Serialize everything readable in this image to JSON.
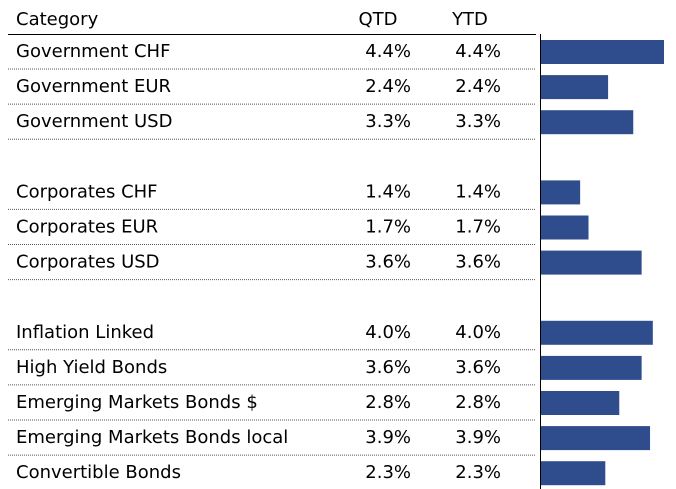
{
  "chart_data": {
    "type": "bar",
    "orientation": "horizontal",
    "header": [
      "Category",
      "QTD",
      "YTD"
    ],
    "color": "#2f4d8c",
    "groups": [
      {
        "categories": [
          "Government CHF",
          "Government EUR",
          "Government USD"
        ],
        "qtd": [
          4.4,
          2.4,
          3.3
        ],
        "qtd_labels": [
          "4.4%",
          "2.4%",
          "3.3%"
        ],
        "ytd": [
          4.4,
          2.4,
          3.3
        ],
        "ytd_labels": [
          "4.4%",
          "2.4%",
          "3.3%"
        ]
      },
      {
        "categories": [
          "Corporates CHF",
          "Corporates EUR",
          "Corporates USD"
        ],
        "qtd": [
          1.4,
          1.7,
          3.6
        ],
        "qtd_labels": [
          "1.4%",
          "1.7%",
          "3.6%"
        ],
        "ytd": [
          1.4,
          1.7,
          3.6
        ],
        "ytd_labels": [
          "1.4%",
          "1.7%",
          "3.6%"
        ]
      },
      {
        "categories": [
          "Inflation Linked",
          "High Yield Bonds",
          "Emerging Markets Bonds $",
          "Emerging Markets Bonds local",
          "Convertible Bonds"
        ],
        "qtd": [
          4.0,
          3.6,
          2.8,
          3.9,
          2.3
        ],
        "qtd_labels": [
          "4.0%",
          "3.6%",
          "2.8%",
          "3.9%",
          "2.3%"
        ],
        "ytd": [
          4.0,
          3.6,
          2.8,
          3.9,
          2.3
        ],
        "ytd_labels": [
          "4.0%",
          "3.6%",
          "2.8%",
          "3.9%",
          "2.3%"
        ]
      }
    ]
  }
}
